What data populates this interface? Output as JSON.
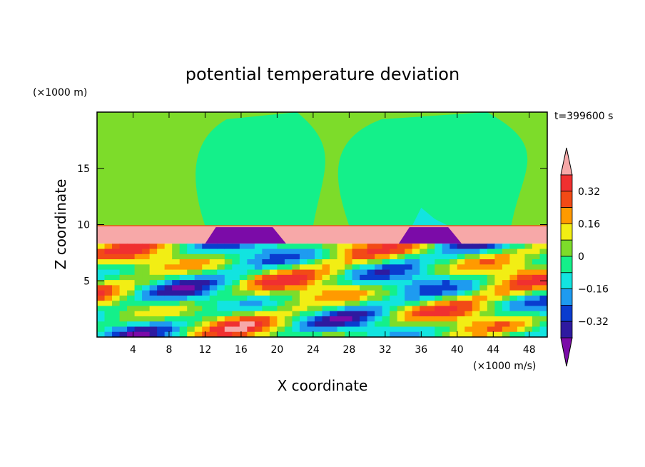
{
  "chart_data": {
    "type": "heatmap",
    "title": "potential temperature deviation",
    "xlabel": "X coordinate",
    "ylabel": "Z coordinate",
    "x_unit": "(×1000 m/s)",
    "y_unit": "(×1000 m)",
    "time_label": "t=399600 s",
    "xlim": [
      0,
      50
    ],
    "ylim": [
      0,
      20
    ],
    "x_ticks": [
      4,
      8,
      12,
      16,
      20,
      24,
      28,
      32,
      36,
      40,
      44,
      48
    ],
    "y_ticks": [
      5,
      10,
      15
    ],
    "colorbar": {
      "levels": [
        -0.4,
        -0.32,
        -0.24,
        -0.16,
        -0.08,
        0,
        0.08,
        0.16,
        0.24,
        0.32,
        0.4
      ],
      "labeled": [
        "0.32",
        "0.16",
        "0",
        "−0.16",
        "−0.32"
      ],
      "colors": [
        "#7b0ba8",
        "#2e1aa0",
        "#0a3ccf",
        "#1e9bf0",
        "#12e4e0",
        "#14f08a",
        "#7ddc2a",
        "#f2ee14",
        "#ff9a00",
        "#f24a16",
        "#f03030",
        "#f7a8a8"
      ]
    },
    "features": {
      "stable_layer_z": [
        8.3,
        9.9
      ],
      "upper_background": "+0.0 to +0.08",
      "plume_centers_x": [
        20,
        38
      ]
    }
  }
}
